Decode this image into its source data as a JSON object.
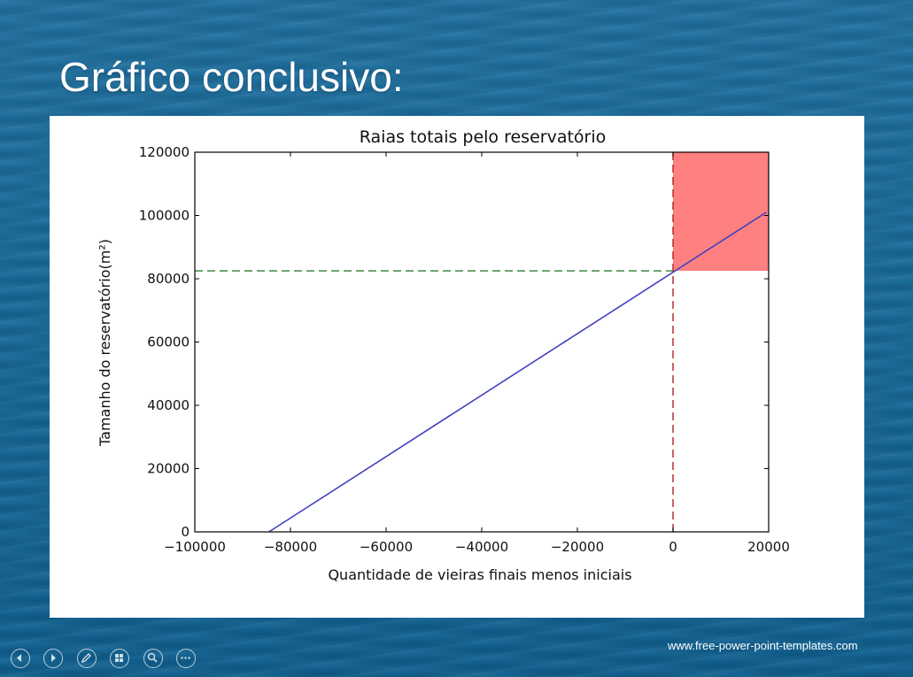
{
  "slide": {
    "title": "Gráfico conclusivo:",
    "footer_url": "www.free-power-point-templates.com"
  },
  "nav_icons": [
    "previous-icon",
    "next-icon",
    "pen-icon",
    "slides-icon",
    "zoom-icon",
    "more-icon"
  ],
  "colors": {
    "line": "#4040c0",
    "highlight_fill": "#ff8080",
    "vertical_dash": "#b22222",
    "horizontal_dash": "#2e7d32"
  },
  "chart_data": {
    "type": "line",
    "title": "Raias totais pelo reservatório",
    "xlabel": "Quantidade de vieiras finais menos iniciais",
    "ylabel": "Tamanho do reservatório(m²)",
    "xlim": [
      -100000,
      20000
    ],
    "ylim": [
      0,
      120000
    ],
    "xticks": [
      -100000,
      -80000,
      -60000,
      -40000,
      -20000,
      0,
      20000
    ],
    "xtick_labels": [
      "−100000",
      "−80000",
      "−60000",
      "−40000",
      "−20000",
      "0",
      "20000"
    ],
    "yticks": [
      0,
      20000,
      40000,
      60000,
      80000,
      100000,
      120000
    ],
    "ytick_labels": [
      "0",
      "20000",
      "40000",
      "60000",
      "80000",
      "100000",
      "120000"
    ],
    "series": [
      {
        "x": [
          -84500,
          19500
        ],
        "y": [
          0,
          101000
        ]
      }
    ],
    "reference_lines": {
      "vertical_x": 0,
      "horizontal_y": 82500
    },
    "highlight_region": {
      "x": [
        0,
        20000
      ],
      "y": [
        82500,
        120000
      ]
    },
    "grid": false
  }
}
